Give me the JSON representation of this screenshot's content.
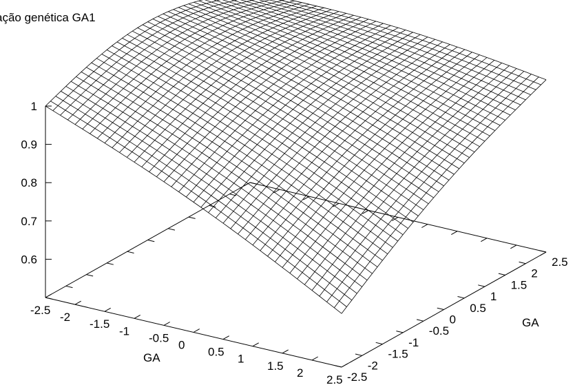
{
  "chart_data": {
    "type": "surface",
    "title": "ação genética GA1",
    "xlabel": "GA",
    "ylabel": "GA",
    "zlabel": "",
    "x_ticks": [
      -2.5,
      -2,
      -1.5,
      -1,
      -0.5,
      0,
      0.5,
      1,
      1.5,
      2,
      2.5
    ],
    "x_tick_labels": [
      "-2.5",
      "-2",
      "-1.5",
      "-1",
      "-0.5",
      "0",
      "0.5",
      "1",
      "1.5",
      "2",
      "2.5"
    ],
    "y_ticks": [
      -2.5,
      -2,
      -1.5,
      -1,
      -0.5,
      0,
      0.5,
      1,
      1.5,
      2,
      2.5
    ],
    "y_tick_labels": [
      "-2.5",
      "-2",
      "-1.5",
      "-1",
      "-0.5",
      "0",
      "0.5",
      "1",
      "1.5",
      "2",
      "2.5"
    ],
    "z_ticks": [
      0.6,
      0.7,
      0.8,
      0.9,
      1
    ],
    "z_tick_labels": [
      "0.6",
      "0.7",
      "0.8",
      "0.9",
      "1"
    ],
    "xlim": [
      -2.5,
      2.5
    ],
    "ylim": [
      -2.5,
      2.5
    ],
    "zlim": [
      0.5,
      1.0
    ],
    "grid_divisions": 40,
    "surface_corners": {
      "x_min_y_min": 1.0,
      "x_max_y_min": 0.64,
      "x_min_y_max": 1.0,
      "x_max_y_max": 0.95
    },
    "line_color": "#000000"
  }
}
